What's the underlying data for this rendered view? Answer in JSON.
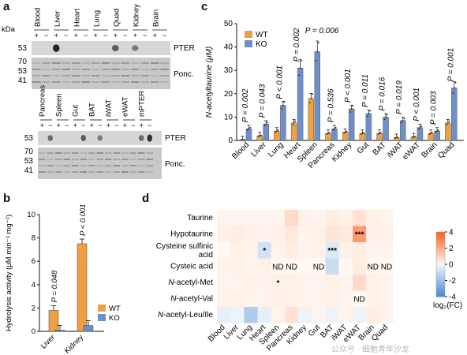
{
  "panel_labels": {
    "a": "a",
    "b": "b",
    "c": "c",
    "d": "d"
  },
  "blot_top": {
    "kda_label": "kDa",
    "tissues": [
      "Blood",
      "Liver",
      "Heart",
      "Lung",
      "Quad",
      "Kidney",
      "Brain"
    ],
    "markers_pter": [
      "53"
    ],
    "markers_ponc": [
      "70",
      "53",
      "41"
    ],
    "right_labels": [
      "PTER",
      "Ponc."
    ]
  },
  "blot_bottom": {
    "tissues": [
      "Pancreas",
      "Spleen",
      "Gut",
      "BAT",
      "iWAT",
      "eWAT",
      "mPTER"
    ],
    "markers_pter": [
      "53"
    ],
    "markers_ponc": [
      "70",
      "53",
      "41"
    ],
    "right_labels": [
      "PTER",
      "Ponc."
    ]
  },
  "chart_data": [
    {
      "panel": "b",
      "type": "bar",
      "categories": [
        "Liver",
        "Kidney"
      ],
      "series": [
        {
          "name": "WT",
          "values": [
            1.8,
            7.5
          ],
          "color": "#f0a040"
        },
        {
          "name": "KO",
          "values": [
            0.1,
            0.5
          ],
          "color": "#6f8fc9"
        }
      ],
      "ylabel": "Hydrolysis activity (μM min⁻¹ mg⁻¹)",
      "ylim": [
        0,
        10
      ],
      "yticks": [
        "0",
        "2",
        "4",
        "6",
        "8",
        "10"
      ],
      "pvalues": [
        "P = 0.048",
        "P < 0.001"
      ],
      "legend": [
        "WT",
        "KO"
      ]
    },
    {
      "panel": "c",
      "type": "bar",
      "categories": [
        "Blood",
        "Liver",
        "Lung",
        "Heart",
        "Spleen",
        "Pancreas",
        "Kidney",
        "Gut",
        "BAT",
        "iWAT",
        "eWAT",
        "Brain",
        "Quad"
      ],
      "series": [
        {
          "name": "WT",
          "values": [
            0.3,
            2,
            4,
            7.5,
            18,
            3,
            3.5,
            3,
            3,
            1.2,
            1.5,
            3,
            7.5
          ],
          "color": "#f0a040"
        },
        {
          "name": "KO",
          "values": [
            5,
            7,
            15,
            31,
            38,
            5,
            13.5,
            11.5,
            10,
            8.5,
            5.5,
            4,
            22.5
          ],
          "color": "#6f8fc9"
        }
      ],
      "ylabel": "N-acetyltaurine (μM)",
      "ylim": [
        0,
        50
      ],
      "yticks": [
        "0",
        "10",
        "20",
        "30",
        "40",
        "50"
      ],
      "pvalues": [
        "P = 0.002",
        "P = 0.043",
        "P < 0.001",
        "P = 0.002",
        "P = 0.006",
        "P = 0.536",
        "P < 0.001",
        "P = 0.011",
        "P = 0.016",
        "P = 0.019",
        "P < 0.001",
        "P = 0.003",
        "P = 0.001"
      ],
      "legend": [
        "WT",
        "KO"
      ]
    },
    {
      "panel": "d",
      "type": "heatmap",
      "rows": [
        "Taurine",
        "Hypotaurine",
        "Cysteine sulfinic acid",
        "Cysteic acid",
        "N-acetyl-Met",
        "N-acetyl-Val",
        "N-acetyl-Leu/Ile"
      ],
      "row_labels": [
        [
          "Taurine"
        ],
        [
          "Hypotaurine"
        ],
        [
          "Cysteine sulfinic",
          "acid"
        ],
        [
          "Cysteic acid"
        ],
        [
          "N-acetyl-Met"
        ],
        [
          "N-acetyl-Val"
        ],
        [
          "N-acetyl-Leu/Ile"
        ]
      ],
      "columns": [
        "Blood",
        "Liver",
        "Lung",
        "Heart",
        "Spleen",
        "Pancreas",
        "Kidney",
        "Gut",
        "BAT",
        "iWAT",
        "eWAT",
        "Brain",
        "Quad"
      ],
      "values": [
        [
          0.1,
          0.1,
          0.1,
          0.1,
          0.1,
          0.8,
          0.2,
          0.1,
          0.3,
          0.2,
          0.6,
          0.2,
          0.1
        ],
        [
          0.2,
          0.3,
          0.2,
          0.1,
          0.2,
          0.4,
          0.1,
          0.2,
          0.5,
          0.4,
          2.5,
          0.2,
          0.2
        ],
        [
          0.0,
          0.2,
          0.1,
          -0.8,
          0.1,
          0.3,
          0.1,
          0.2,
          -0.6,
          0.2,
          0.3,
          0.1,
          0.1
        ],
        [
          0.1,
          0.2,
          0.1,
          0.2,
          0.0,
          0.0,
          0.0,
          0.0,
          -1.0,
          0.0,
          0.3,
          0.0,
          0.0
        ],
        [
          0.1,
          0.1,
          0.2,
          0.1,
          0.2,
          0.2,
          0.1,
          0.1,
          0.2,
          0.1,
          0.8,
          0.2,
          0.1
        ],
        [
          0.1,
          0.2,
          0.1,
          0.1,
          0.2,
          0.2,
          0.1,
          0.1,
          0.2,
          0.1,
          0.0,
          0.2,
          0.1
        ],
        [
          -0.3,
          -0.2,
          -1.6,
          -0.3,
          0.1,
          0.6,
          -0.2,
          0.1,
          -0.2,
          0.1,
          -0.2,
          0.3,
          0.1
        ]
      ],
      "annotations": [
        {
          "row": 1,
          "col": 10,
          "text": "***"
        },
        {
          "row": 2,
          "col": 3,
          "text": "*"
        },
        {
          "row": 2,
          "col": 8,
          "text": "***"
        },
        {
          "row": 3,
          "col": 4,
          "text": "ND"
        },
        {
          "row": 3,
          "col": 5,
          "text": "ND"
        },
        {
          "row": 3,
          "col": 7,
          "text": "ND"
        },
        {
          "row": 3,
          "col": 11,
          "text": "ND"
        },
        {
          "row": 3,
          "col": 12,
          "text": "ND"
        },
        {
          "row": 4,
          "col": 4,
          "text": "*"
        },
        {
          "row": 5,
          "col": 10,
          "text": "ND"
        }
      ],
      "colorbar": {
        "min": -4,
        "max": 4,
        "ticks": [
          "4",
          "2",
          "0",
          "-2",
          "-4"
        ],
        "label": "log₂(FC)"
      }
    }
  ],
  "watermark": "公众号 · 细胞青年沙龙"
}
